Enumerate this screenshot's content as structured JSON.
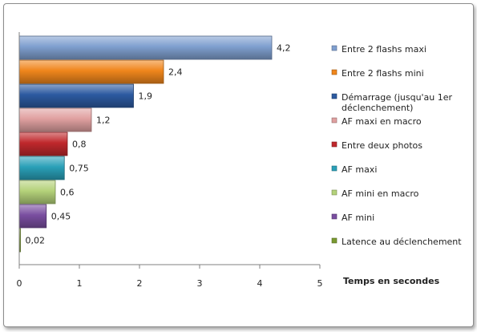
{
  "chart_data": {
    "type": "bar",
    "orientation": "horizontal",
    "xlabel": "Temps en secondes",
    "xlim": [
      0,
      5
    ],
    "x_ticks": [
      "0",
      "1",
      "2",
      "3",
      "4",
      "5"
    ],
    "grid": false,
    "legend_position": "right",
    "bars": [
      {
        "category": "Entre 2 flashs maxi",
        "value": 4.2,
        "label": "4,2",
        "color": "#7f9fcf"
      },
      {
        "category": "Entre 2 flashs mini",
        "value": 2.4,
        "label": "2,4",
        "color": "#f0861c"
      },
      {
        "category": "Démarrage (jusqu'au 1er déclenchement)",
        "value": 1.9,
        "label": "1,9",
        "color": "#2c5aa0"
      },
      {
        "category": "AF maxi en macro",
        "value": 1.2,
        "label": "1,2",
        "color": "#e0a0a0"
      },
      {
        "category": "Entre deux photos",
        "value": 0.8,
        "label": "0,8",
        "color": "#c0282c"
      },
      {
        "category": "AF maxi",
        "value": 0.75,
        "label": "0,75",
        "color": "#2aa0b8"
      },
      {
        "category": "AF mini en macro",
        "value": 0.6,
        "label": "0,6",
        "color": "#b4d27a"
      },
      {
        "category": "AF mini",
        "value": 0.45,
        "label": "0,45",
        "color": "#7a4ea0"
      },
      {
        "category": "Latence au déclenchement",
        "value": 0.02,
        "label": "0,02",
        "color": "#7a9a30"
      }
    ]
  }
}
